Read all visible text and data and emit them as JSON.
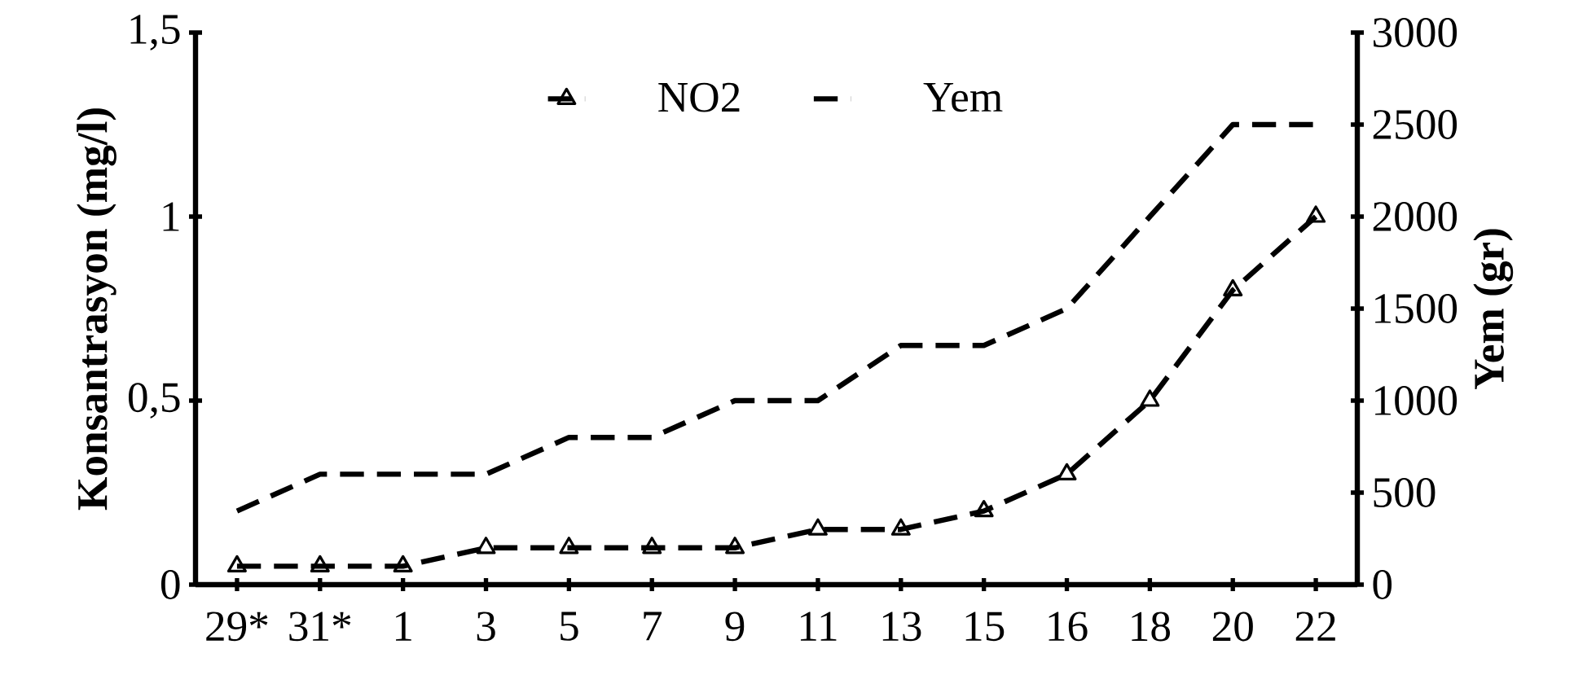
{
  "chart_data": {
    "type": "line",
    "ylabel": "Konsantrasyon (mg/l)",
    "y2label": "Yem (gr)",
    "categories": [
      "29*",
      "31*",
      "1",
      "3",
      "5",
      "7",
      "9",
      "11",
      "13",
      "15",
      "16",
      "18",
      "20",
      "22"
    ],
    "series": [
      {
        "name": "NO2",
        "color": "#000000",
        "marker": "triangle",
        "line_style": "dashed",
        "axis": "y",
        "values": [
          0.05,
          0.05,
          0.05,
          0.1,
          0.1,
          0.1,
          0.1,
          0.15,
          0.15,
          0.2,
          0.3,
          0.5,
          0.8,
          1.0
        ]
      },
      {
        "name": "Yem",
        "color": "#000000",
        "marker": "none",
        "line_style": "dashed",
        "axis": "y2",
        "values": [
          400,
          600,
          600,
          600,
          800,
          800,
          1000,
          1000,
          1300,
          1300,
          1500,
          2000,
          2500,
          2500
        ]
      }
    ],
    "ylim": [
      0,
      1.5
    ],
    "yticks": [
      0,
      {
        "value": 0.5,
        "label": "0,5"
      },
      1,
      {
        "value": 1.5,
        "label": "1,5"
      }
    ],
    "y2lim": [
      0,
      3000
    ],
    "y2ticks": [
      0,
      500,
      1000,
      1500,
      2000,
      2500,
      3000
    ],
    "legend": "top",
    "grid": false
  }
}
